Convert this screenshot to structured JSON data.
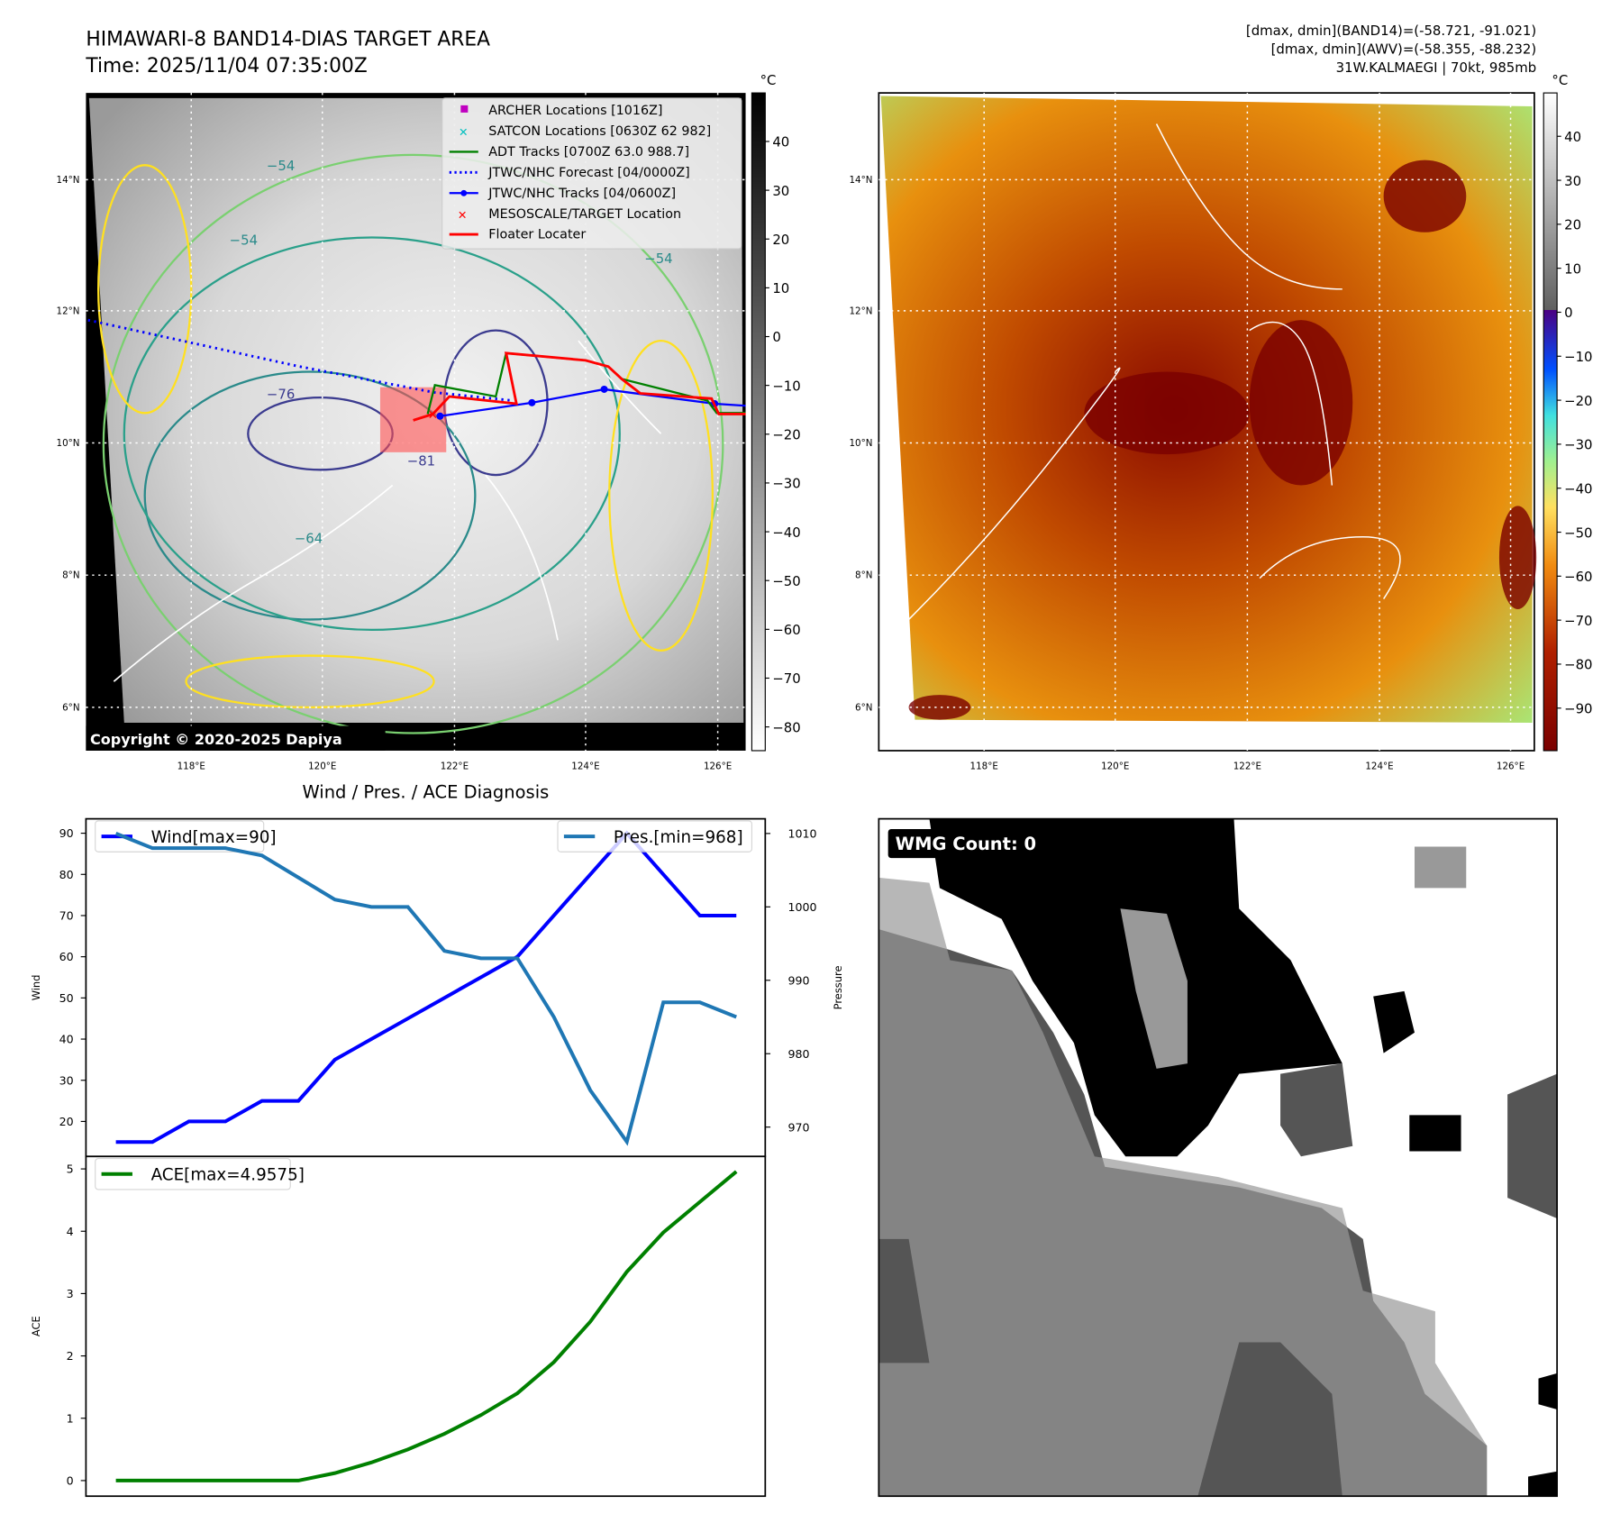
{
  "header": {
    "title": "HIMAWARI-8 BAND14-DIAS TARGET AREA",
    "time": "Time: 2025/11/04 07:35:00Z",
    "info_line1": "[dmax, dmin](BAND14)=(-58.721, -91.021)",
    "info_line2": "[dmax, dmin](AWV)=(-58.355, -88.232)",
    "info_line3": "31W.KALMAEGI | 70kt, 985mb"
  },
  "map_left": {
    "unit": "°C",
    "copyright": "Copyright © 2020-2025 Dapiya",
    "lon_ticks": [
      "118°E",
      "120°E",
      "122°E",
      "124°E",
      "126°E"
    ],
    "lat_ticks": [
      "14°N",
      "12°N",
      "10°N",
      "8°N",
      "6°N"
    ],
    "colorbar_ticks": [
      "40",
      "30",
      "20",
      "10",
      "0",
      "−10",
      "−20",
      "−30",
      "−40",
      "−50",
      "−60",
      "−70",
      "−80"
    ],
    "contour_labels": [
      "−54",
      "−54",
      "−76",
      "−64",
      "−81",
      "−54"
    ],
    "legend": [
      {
        "label": "ARCHER Locations [1016Z]",
        "color": "#c000c0"
      },
      {
        "label": "SATCON Locations [0630Z 62 982]",
        "color": "#00bfbf"
      },
      {
        "label": "ADT Tracks [0700Z 63.0 988.7]",
        "color": "#008000"
      },
      {
        "label": "JTWC/NHC Forecast [04/0000Z]",
        "color": "#0000ff"
      },
      {
        "label": "JTWC/NHC Tracks [04/0600Z]",
        "color": "#0000ff"
      },
      {
        "label": "MESOSCALE/TARGET Location",
        "color": "#ff0000"
      },
      {
        "label": "Floater Locater",
        "color": "#ff0000"
      }
    ]
  },
  "map_right": {
    "unit": "°C",
    "lon_ticks": [
      "118°E",
      "120°E",
      "122°E",
      "124°E",
      "126°E"
    ],
    "lat_ticks": [
      "14°N",
      "12°N",
      "10°N",
      "8°N",
      "6°N"
    ],
    "colorbar_ticks": [
      "40",
      "30",
      "20",
      "10",
      "0",
      "−10",
      "−20",
      "−30",
      "−40",
      "−50",
      "−60",
      "−70",
      "−80",
      "−90"
    ]
  },
  "wmg": {
    "label": "WMG Count: 0"
  },
  "chart_data": [
    {
      "type": "line",
      "title": "Wind / Pres. / ACE Diagnosis",
      "ylabel": "Wind",
      "ylabel_right": "Pressure",
      "ylim": [
        11.5,
        93.5
      ],
      "ylim_right": [
        966,
        1012
      ],
      "yticks": [
        20,
        30,
        40,
        50,
        60,
        70,
        80,
        90
      ],
      "yticks_right": [
        970,
        980,
        990,
        1000,
        1010
      ],
      "series": [
        {
          "name": "Wind[max=90]",
          "color": "#0000ff",
          "axis": "left",
          "values": [
            15,
            15,
            20,
            20,
            25,
            25,
            35,
            40,
            45,
            50,
            55,
            60,
            70,
            80,
            90,
            80,
            70,
            70
          ]
        },
        {
          "name": "Pres.[min=968]",
          "color": "#1f77b4",
          "axis": "right",
          "values": [
            1010,
            1008,
            1008,
            1008,
            1007,
            1004,
            1001,
            1000,
            1000,
            994,
            993,
            993,
            985,
            975,
            968,
            987,
            987,
            985
          ]
        }
      ]
    },
    {
      "type": "line",
      "ylabel": "ACE",
      "ylim": [
        -0.25,
        5.2
      ],
      "yticks": [
        0,
        1,
        2,
        3,
        4,
        5
      ],
      "series": [
        {
          "name": "ACE[max=4.9575]",
          "color": "#008000",
          "values": [
            0,
            0,
            0,
            0,
            0,
            0,
            0.12,
            0.29,
            0.5,
            0.75,
            1.05,
            1.4,
            1.9,
            2.55,
            3.35,
            3.98,
            4.47,
            4.9575
          ]
        }
      ]
    }
  ]
}
